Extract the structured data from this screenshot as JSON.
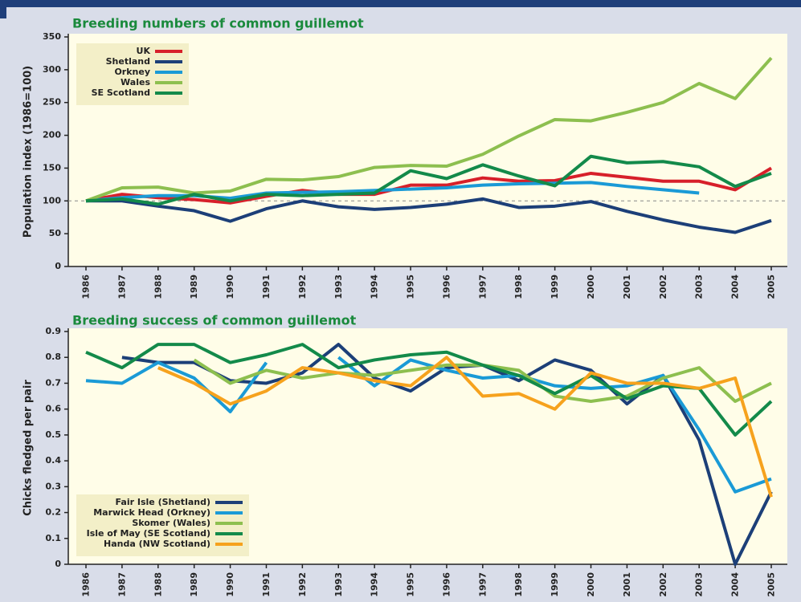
{
  "chart_data": [
    {
      "type": "line",
      "title": "Breeding numbers of common guillemot",
      "y_label": "Population index (1986=100)",
      "categories": [
        "1986",
        "1987",
        "1988",
        "1989",
        "1990",
        "1991",
        "1992",
        "1993",
        "1994",
        "1995",
        "1996",
        "1997",
        "1998",
        "1999",
        "2000",
        "2001",
        "2002",
        "2003",
        "2004",
        "2005"
      ],
      "ylim": [
        0,
        350
      ],
      "yticks": [
        0,
        50,
        100,
        150,
        200,
        250,
        300,
        350
      ],
      "reference_line": 100,
      "legend": "top-left",
      "series": [
        {
          "name": "UK",
          "color": "#d7202a",
          "values": [
            100,
            110,
            105,
            102,
            97,
            107,
            116,
            110,
            110,
            124,
            124,
            135,
            130,
            131,
            142,
            136,
            130,
            130,
            117,
            150
          ]
        },
        {
          "name": "Shetland",
          "color": "#1c3f78",
          "values": [
            100,
            100,
            92,
            85,
            69,
            88,
            100,
            91,
            87,
            90,
            95,
            103,
            90,
            92,
            99,
            84,
            71,
            60,
            52,
            70
          ]
        },
        {
          "name": "Orkney",
          "color": "#1a9ad6",
          "values": [
            100,
            105,
            108,
            108,
            104,
            112,
            113,
            114,
            116,
            118,
            120,
            124,
            126,
            127,
            128,
            122,
            117,
            112,
            null,
            null
          ]
        },
        {
          "name": "Wales",
          "color": "#8dbf4f",
          "values": [
            100,
            120,
            121,
            112,
            115,
            133,
            132,
            137,
            151,
            154,
            153,
            171,
            199,
            224,
            222,
            235,
            250,
            279,
            256,
            318
          ]
        },
        {
          "name": "SE Scotland",
          "color": "#138a4a",
          "values": [
            100,
            103,
            95,
            110,
            100,
            110,
            108,
            110,
            112,
            146,
            134,
            155,
            138,
            123,
            168,
            158,
            160,
            152,
            122,
            142
          ]
        }
      ]
    },
    {
      "type": "line",
      "title": "Breeding success of common guillemot",
      "y_label": "Chicks fledged per pair",
      "categories": [
        "1986",
        "1987",
        "1988",
        "1989",
        "1990",
        "1991",
        "1992",
        "1993",
        "1994",
        "1995",
        "1996",
        "1997",
        "1998",
        "1999",
        "2000",
        "2001",
        "2002",
        "2003",
        "2004",
        "2005"
      ],
      "ylim": [
        0,
        0.9
      ],
      "yticks": [
        0,
        0.1,
        0.2,
        0.3,
        0.4,
        0.5,
        0.6,
        0.7,
        0.8,
        0.9
      ],
      "legend": "bottom-left",
      "series": [
        {
          "name": "Fair Isle (Shetland)",
          "color": "#1c3f78",
          "values": [
            null,
            0.8,
            0.78,
            0.78,
            0.71,
            0.7,
            0.74,
            0.85,
            0.72,
            0.67,
            0.76,
            0.77,
            0.71,
            0.79,
            0.75,
            0.62,
            0.73,
            0.48,
            0.0,
            0.28
          ]
        },
        {
          "name": "Marwick Head (Orkney)",
          "color": "#1a9ad6",
          "values": [
            0.71,
            0.7,
            0.78,
            0.72,
            0.59,
            0.78,
            null,
            0.8,
            0.69,
            0.79,
            0.75,
            0.72,
            0.73,
            0.69,
            0.68,
            0.69,
            0.73,
            0.52,
            0.28,
            0.33
          ]
        },
        {
          "name": "Skomer (Wales)",
          "color": "#8dbf4f",
          "values": [
            null,
            null,
            null,
            0.79,
            0.7,
            0.75,
            0.72,
            0.74,
            0.73,
            0.75,
            0.77,
            0.77,
            0.75,
            0.65,
            0.63,
            0.65,
            0.72,
            0.76,
            0.63,
            0.7
          ]
        },
        {
          "name": "Isle of May (SE Scotland)",
          "color": "#138a4a",
          "values": [
            0.82,
            0.76,
            0.85,
            0.85,
            0.78,
            0.81,
            0.85,
            0.76,
            0.79,
            0.81,
            0.82,
            0.77,
            0.73,
            0.66,
            0.73,
            0.64,
            0.69,
            0.68,
            0.5,
            0.63
          ]
        },
        {
          "name": "Handa (NW Scotland)",
          "color": "#f6a21d",
          "values": [
            null,
            null,
            0.76,
            0.7,
            0.62,
            0.67,
            0.76,
            0.74,
            0.71,
            0.69,
            0.8,
            0.65,
            0.66,
            0.6,
            0.74,
            0.7,
            0.7,
            0.68,
            0.72,
            0.26
          ]
        }
      ]
    }
  ]
}
